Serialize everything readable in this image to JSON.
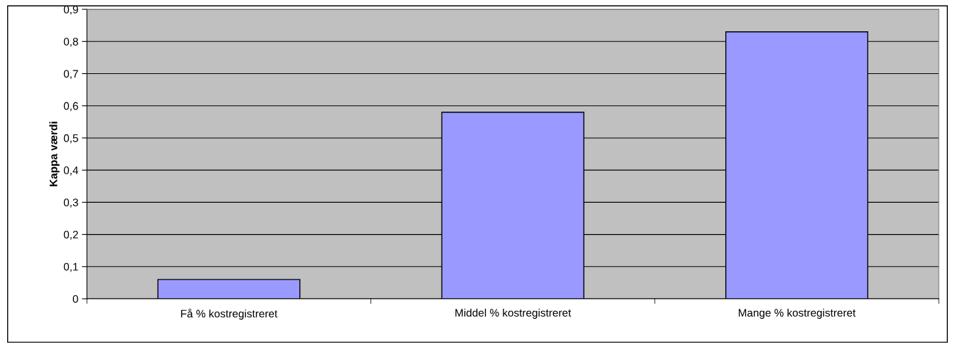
{
  "chart_data": {
    "type": "bar",
    "ylabel": "Kappa værdi",
    "categories": [
      "Få % kostregistreret",
      "Middel % kostregistreret",
      "Mange % kostregistreret"
    ],
    "values": [
      0.06,
      0.58,
      0.83
    ],
    "color": "#9999ff",
    "ylim": [
      0,
      0.9
    ],
    "yticks": [
      0,
      {
        "value": 0.1,
        "label": "0,1"
      },
      {
        "value": 0.2,
        "label": "0,2"
      },
      {
        "value": 0.3,
        "label": "0,3"
      },
      {
        "value": 0.4,
        "label": "0,4"
      },
      {
        "value": 0.5,
        "label": "0,5"
      },
      {
        "value": 0.6,
        "label": "0,6"
      },
      {
        "value": 0.7,
        "label": "0,7"
      },
      {
        "value": 0.8,
        "label": "0,8"
      },
      {
        "value": 0.9,
        "label": "0,9"
      }
    ],
    "grid": "y",
    "legend": false
  }
}
